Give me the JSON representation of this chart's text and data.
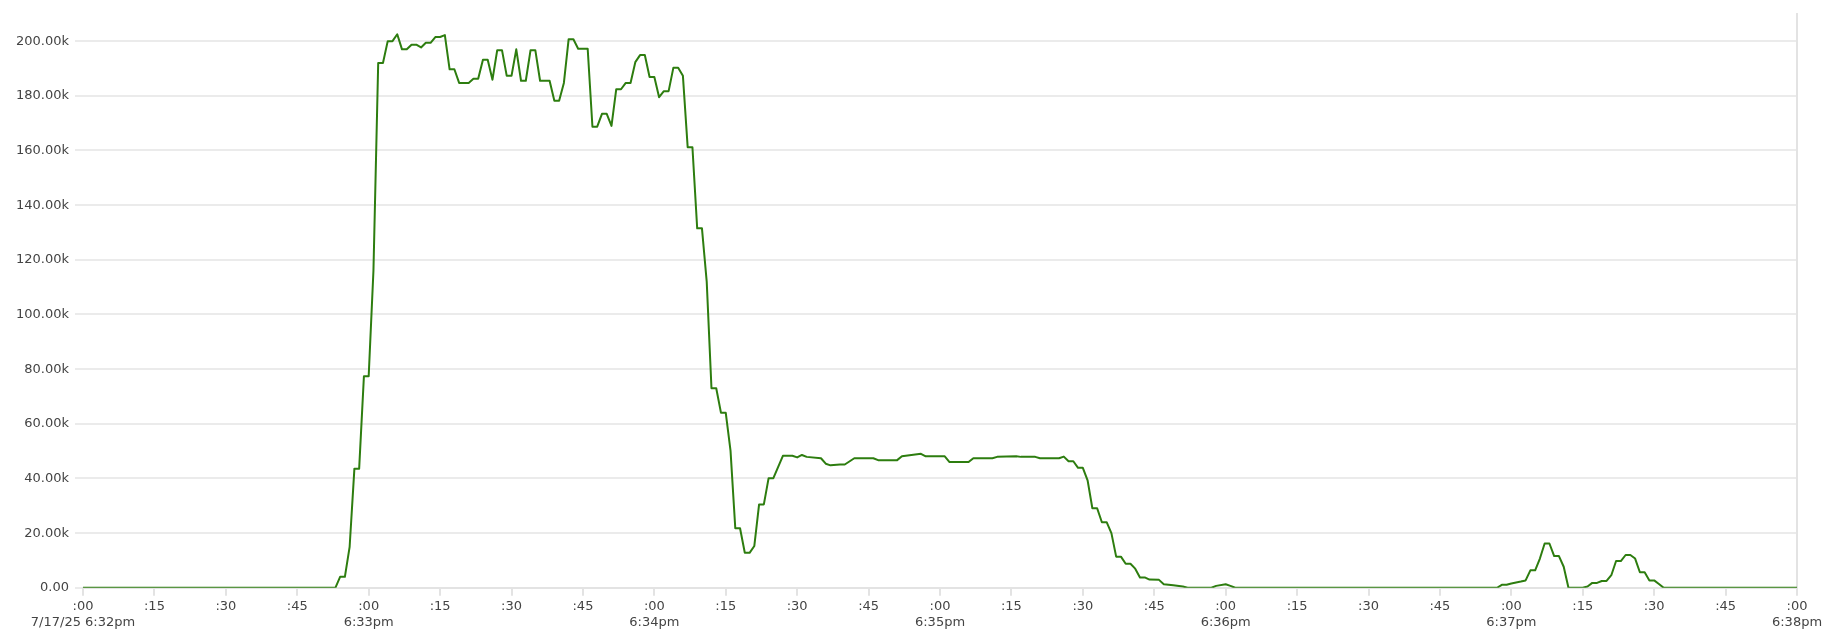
{
  "chart_data": {
    "type": "line",
    "x": [
      "--07-17T18:32:00",
      "--07-17T18:32:53",
      "--07-17T18:32:54",
      "--07-17T18:32:55",
      "--07-17T18:32:56",
      "--07-17T18:32:57",
      "--07-17T18:32:58",
      "--07-17T18:32:59",
      "--07-17T18:33:00",
      "--07-17T18:33:01",
      "--07-17T18:33:02",
      "--07-17T18:33:03",
      "--07-17T18:33:04",
      "--07-17T18:33:05",
      "--07-17T18:33:06",
      "--07-17T18:33:07",
      "--07-17T18:33:08",
      "--07-17T18:33:09",
      "--07-17T18:33:10",
      "--07-17T18:33:11",
      "--07-17T18:33:12",
      "--07-17T18:33:13",
      "--07-17T18:33:14",
      "--07-17T18:33:15",
      "--07-17T18:33:16",
      "--07-17T18:33:17",
      "--07-17T18:33:18",
      "--07-17T18:33:19",
      "--07-17T18:33:21",
      "--07-17T18:33:22",
      "--07-17T18:33:23",
      "--07-17T18:33:24",
      "--07-17T18:33:25",
      "--07-17T18:33:26",
      "--07-17T18:33:27",
      "--07-17T18:33:28",
      "--07-17T18:33:29",
      "--07-17T18:33:30",
      "--07-17T18:33:31",
      "--07-17T18:33:32",
      "--07-17T18:33:33",
      "--07-17T18:33:34",
      "--07-17T18:33:35",
      "--07-17T18:33:36",
      "--07-17T18:33:38",
      "--07-17T18:33:39",
      "--07-17T18:33:40",
      "--07-17T18:33:41",
      "--07-17T18:33:42",
      "--07-17T18:33:43",
      "--07-17T18:33:44",
      "--07-17T18:33:46",
      "--07-17T18:33:47",
      "--07-17T18:33:48",
      "--07-17T18:33:49",
      "--07-17T18:33:50",
      "--07-17T18:33:51",
      "--07-17T18:33:52",
      "--07-17T18:33:53",
      "--07-17T18:33:54",
      "--07-17T18:33:55",
      "--07-17T18:33:56",
      "--07-17T18:33:57",
      "--07-17T18:33:58",
      "--07-17T18:33:59",
      "--07-17T18:34:00",
      "--07-17T18:34:01",
      "--07-17T18:34:02",
      "--07-17T18:34:03",
      "--07-17T18:34:04",
      "--07-17T18:34:05",
      "--07-17T18:34:06",
      "--07-17T18:34:07",
      "--07-17T18:34:08",
      "--07-17T18:34:09",
      "--07-17T18:34:10",
      "--07-17T18:34:11",
      "--07-17T18:34:12",
      "--07-17T18:34:13",
      "--07-17T18:34:14",
      "--07-17T18:34:15",
      "--07-17T18:34:16",
      "--07-17T18:34:17",
      "--07-17T18:34:18",
      "--07-17T18:34:19",
      "--07-17T18:34:20",
      "--07-17T18:34:21",
      "--07-17T18:34:22",
      "--07-17T18:34:23",
      "--07-17T18:34:24",
      "--07-17T18:34:25",
      "--07-17T18:34:27",
      "--07-17T18:34:29",
      "--07-17T18:34:30",
      "--07-17T18:34:31",
      "--07-17T18:34:32",
      "--07-17T18:34:35",
      "--07-17T18:34:36",
      "--07-17T18:34:37",
      "--07-17T18:34:39",
      "--07-17T18:34:40",
      "--07-17T18:34:42",
      "--07-17T18:34:46",
      "--07-17T18:34:47",
      "--07-17T18:34:51",
      "--07-17T18:34:52",
      "--07-17T18:34:54",
      "--07-17T18:34:56",
      "--07-17T18:34:57",
      "--07-17T18:35:01",
      "--07-17T18:35:02",
      "--07-17T18:35:06",
      "--07-17T18:35:07",
      "--07-17T18:35:11",
      "--07-17T18:35:12",
      "--07-17T18:35:16",
      "--07-17T18:35:17",
      "--07-17T18:35:20",
      "--07-17T18:35:21",
      "--07-17T18:35:25",
      "--07-17T18:35:26",
      "--07-17T18:35:27",
      "--07-17T18:35:28",
      "--07-17T18:35:29",
      "--07-17T18:35:30",
      "--07-17T18:35:31",
      "--07-17T18:35:32",
      "--07-17T18:35:33",
      "--07-17T18:35:34",
      "--07-17T18:35:35",
      "--07-17T18:35:36",
      "--07-17T18:35:37",
      "--07-17T18:35:38",
      "--07-17T18:35:39",
      "--07-17T18:35:40",
      "--07-17T18:35:41",
      "--07-17T18:35:42",
      "--07-17T18:35:43",
      "--07-17T18:35:44",
      "--07-17T18:35:46",
      "--07-17T18:35:47",
      "--07-17T18:35:49",
      "--07-17T18:35:51",
      "--07-17T18:35:52",
      "--07-17T18:35:57",
      "--07-17T18:35:58",
      "--07-17T18:36:00",
      "--07-17T18:36:01",
      "--07-17T18:36:02",
      "--07-17T18:36:57",
      "--07-17T18:36:58",
      "--07-17T18:36:59",
      "--07-17T18:37:00",
      "--07-17T18:37:02",
      "--07-17T18:37:03",
      "--07-17T18:37:04",
      "--07-17T18:37:05",
      "--07-17T18:37:06",
      "--07-17T18:37:07",
      "--07-17T18:37:08",
      "--07-17T18:37:09",
      "--07-17T18:37:10",
      "--07-17T18:37:11",
      "--07-17T18:37:12",
      "--07-17T18:37:15",
      "--07-17T18:37:16",
      "--07-17T18:37:17",
      "--07-17T18:37:18",
      "--07-17T18:37:19",
      "--07-17T18:37:20",
      "--07-17T18:37:21",
      "--07-17T18:37:22",
      "--07-17T18:37:23",
      "--07-17T18:37:24",
      "--07-17T18:37:25",
      "--07-17T18:37:26",
      "--07-17T18:37:27",
      "--07-17T18:37:28",
      "--07-17T18:37:29",
      "--07-17T18:37:30",
      "--07-17T18:37:31",
      "--07-17T18:37:32",
      "--07-17T18:38:00"
    ],
    "series": [
      {
        "color": "#2d7d0f",
        "values": [
          0,
          0,
          4000,
          4000,
          15000,
          43600,
          43600,
          77400,
          77400,
          116000,
          192000,
          192000,
          200000,
          200000,
          202500,
          197000,
          197000,
          198700,
          198700,
          197700,
          199400,
          199400,
          201500,
          201500,
          202200,
          189700,
          189700,
          184700,
          184700,
          186200,
          186200,
          193200,
          193200,
          185900,
          196700,
          196700,
          187300,
          187300,
          197000,
          185500,
          185500,
          196700,
          196700,
          185500,
          185500,
          178200,
          178200,
          184700,
          200700,
          200700,
          197200,
          197200,
          168700,
          168700,
          173400,
          173400,
          169000,
          182400,
          182400,
          184700,
          184700,
          192300,
          194900,
          194900,
          186900,
          186900,
          179500,
          181700,
          181700,
          190300,
          190300,
          187300,
          161200,
          161200,
          131500,
          131500,
          112000,
          73000,
          73000,
          64000,
          64000,
          50200,
          21800,
          21800,
          12800,
          12800,
          15300,
          30500,
          30500,
          40100,
          40100,
          48300,
          48300,
          47700,
          48600,
          47900,
          47400,
          45400,
          44800,
          45100,
          45100,
          47400,
          47400,
          46700,
          46700,
          48100,
          48600,
          49000,
          48100,
          48100,
          46000,
          46000,
          47400,
          47400,
          47900,
          48100,
          47900,
          47900,
          47400,
          47400,
          48000,
          46300,
          46300,
          43900,
          43900,
          39300,
          29100,
          29100,
          24000,
          24000,
          20000,
          11400,
          11400,
          8800,
          8800,
          7000,
          3800,
          3800,
          3000,
          2900,
          1300,
          900,
          500,
          0,
          0,
          700,
          1300,
          700,
          0,
          0,
          1100,
          1100,
          1600,
          2300,
          2700,
          6400,
          6400,
          10700,
          16200,
          16200,
          11600,
          11600,
          7700,
          0,
          0,
          500,
          1800,
          1800,
          2500,
          2500,
          4600,
          9800,
          9800,
          12000,
          12000,
          10700,
          5700,
          5700,
          2700,
          2700,
          1400,
          0,
          0
        ]
      }
    ],
    "xlim": [
      "--07-17T18:32:00",
      "--07-17T18:38:00"
    ],
    "xticks": [
      {
        "value": "--07-17T18:32:00",
        "label": ":00\n7/17/25 6:32pm"
      },
      {
        "value": "--07-17T18:32:15",
        "label": ":15"
      },
      {
        "value": "--07-17T18:32:30",
        "label": ":30"
      },
      {
        "value": "--07-17T18:32:45",
        "label": ":45"
      },
      {
        "value": "--07-17T18:33:00",
        "label": ":00\n6:33pm"
      },
      {
        "value": "--07-17T18:33:15",
        "label": ":15"
      },
      {
        "value": "--07-17T18:33:30",
        "label": ":30"
      },
      {
        "value": "--07-17T18:33:45",
        "label": ":45"
      },
      {
        "value": "--07-17T18:34:00",
        "label": ":00\n6:34pm"
      },
      {
        "value": "--07-17T18:34:15",
        "label": ":15"
      },
      {
        "value": "--07-17T18:34:30",
        "label": ":30"
      },
      {
        "value": "--07-17T18:34:45",
        "label": ":45"
      },
      {
        "value": "--07-17T18:35:00",
        "label": ":00\n6:35pm"
      },
      {
        "value": "--07-17T18:35:15",
        "label": ":15"
      },
      {
        "value": "--07-17T18:35:30",
        "label": ":30"
      },
      {
        "value": "--07-17T18:35:45",
        "label": ":45"
      },
      {
        "value": "--07-17T18:36:00",
        "label": ":00\n6:36pm"
      },
      {
        "value": "--07-17T18:36:15",
        "label": ":15"
      },
      {
        "value": "--07-17T18:36:30",
        "label": ":30"
      },
      {
        "value": "--07-17T18:36:45",
        "label": ":45"
      },
      {
        "value": "--07-17T18:37:00",
        "label": ":00\n6:37pm"
      },
      {
        "value": "--07-17T18:37:15",
        "label": ":15"
      },
      {
        "value": "--07-17T18:37:30",
        "label": ":30"
      },
      {
        "value": "--07-17T18:37:45",
        "label": ":45"
      },
      {
        "value": "--07-17T18:38:00",
        "label": ":00\n6:38pm"
      }
    ],
    "ylim": [
      0,
      210000
    ],
    "yticks": [
      {
        "value": 0,
        "label": "0.00"
      },
      {
        "value": 20000,
        "label": "20.00k"
      },
      {
        "value": 40000,
        "label": "40.00k"
      },
      {
        "value": 60000,
        "label": "60.00k"
      },
      {
        "value": 80000,
        "label": "80.00k"
      },
      {
        "value": 100000,
        "label": "100.00k"
      },
      {
        "value": 120000,
        "label": "120.00k"
      },
      {
        "value": 140000,
        "label": "140.00k"
      },
      {
        "value": 160000,
        "label": "160.00k"
      },
      {
        "value": 180000,
        "label": "180.00k"
      },
      {
        "value": 200000,
        "label": "200.00k"
      }
    ],
    "grid": "y",
    "legend": false,
    "marker": "none",
    "line_style": "solid"
  }
}
